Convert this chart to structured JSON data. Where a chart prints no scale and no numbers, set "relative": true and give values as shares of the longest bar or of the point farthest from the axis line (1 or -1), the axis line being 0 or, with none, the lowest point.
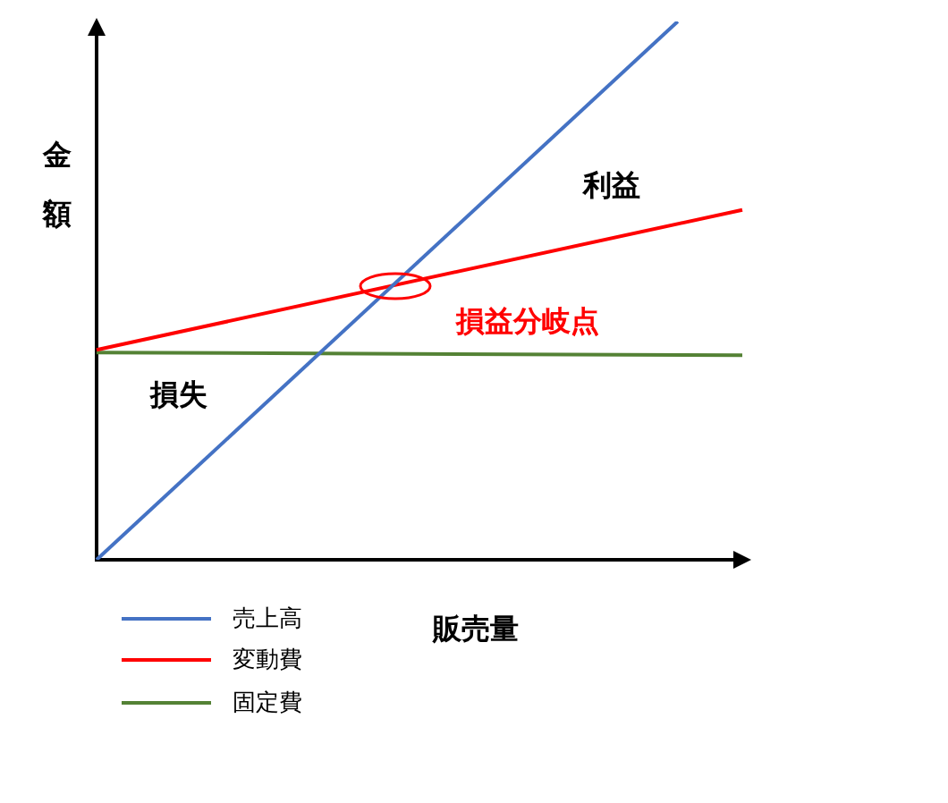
{
  "chart_data": {
    "type": "line",
    "relative": true,
    "xlabel": "販売量",
    "ylabel": "金額",
    "categories": [
      null,
      null,
      null,
      null,
      null,
      null,
      null,
      null,
      null,
      null,
      null
    ],
    "series": [
      {
        "name": "売上高",
        "color": "#4472c4",
        "values": [
          0,
          null,
          null,
          null,
          null,
          null,
          null,
          null,
          null,
          1,
          null
        ]
      },
      {
        "name": "変動費",
        "color": "#ff0000",
        "values": [
          0.39,
          null,
          null,
          null,
          null,
          null,
          null,
          null,
          null,
          null,
          0.65
        ]
      },
      {
        "name": "固定費",
        "color": "#548235",
        "values": [
          0.385,
          null,
          null,
          null,
          null,
          null,
          null,
          null,
          null,
          null,
          0.38
        ]
      }
    ],
    "annotations": [
      "利益",
      "損益分岐点",
      "損失"
    ],
    "legend": "bottom left",
    "marker": "none",
    "line_style": "solid"
  }
}
